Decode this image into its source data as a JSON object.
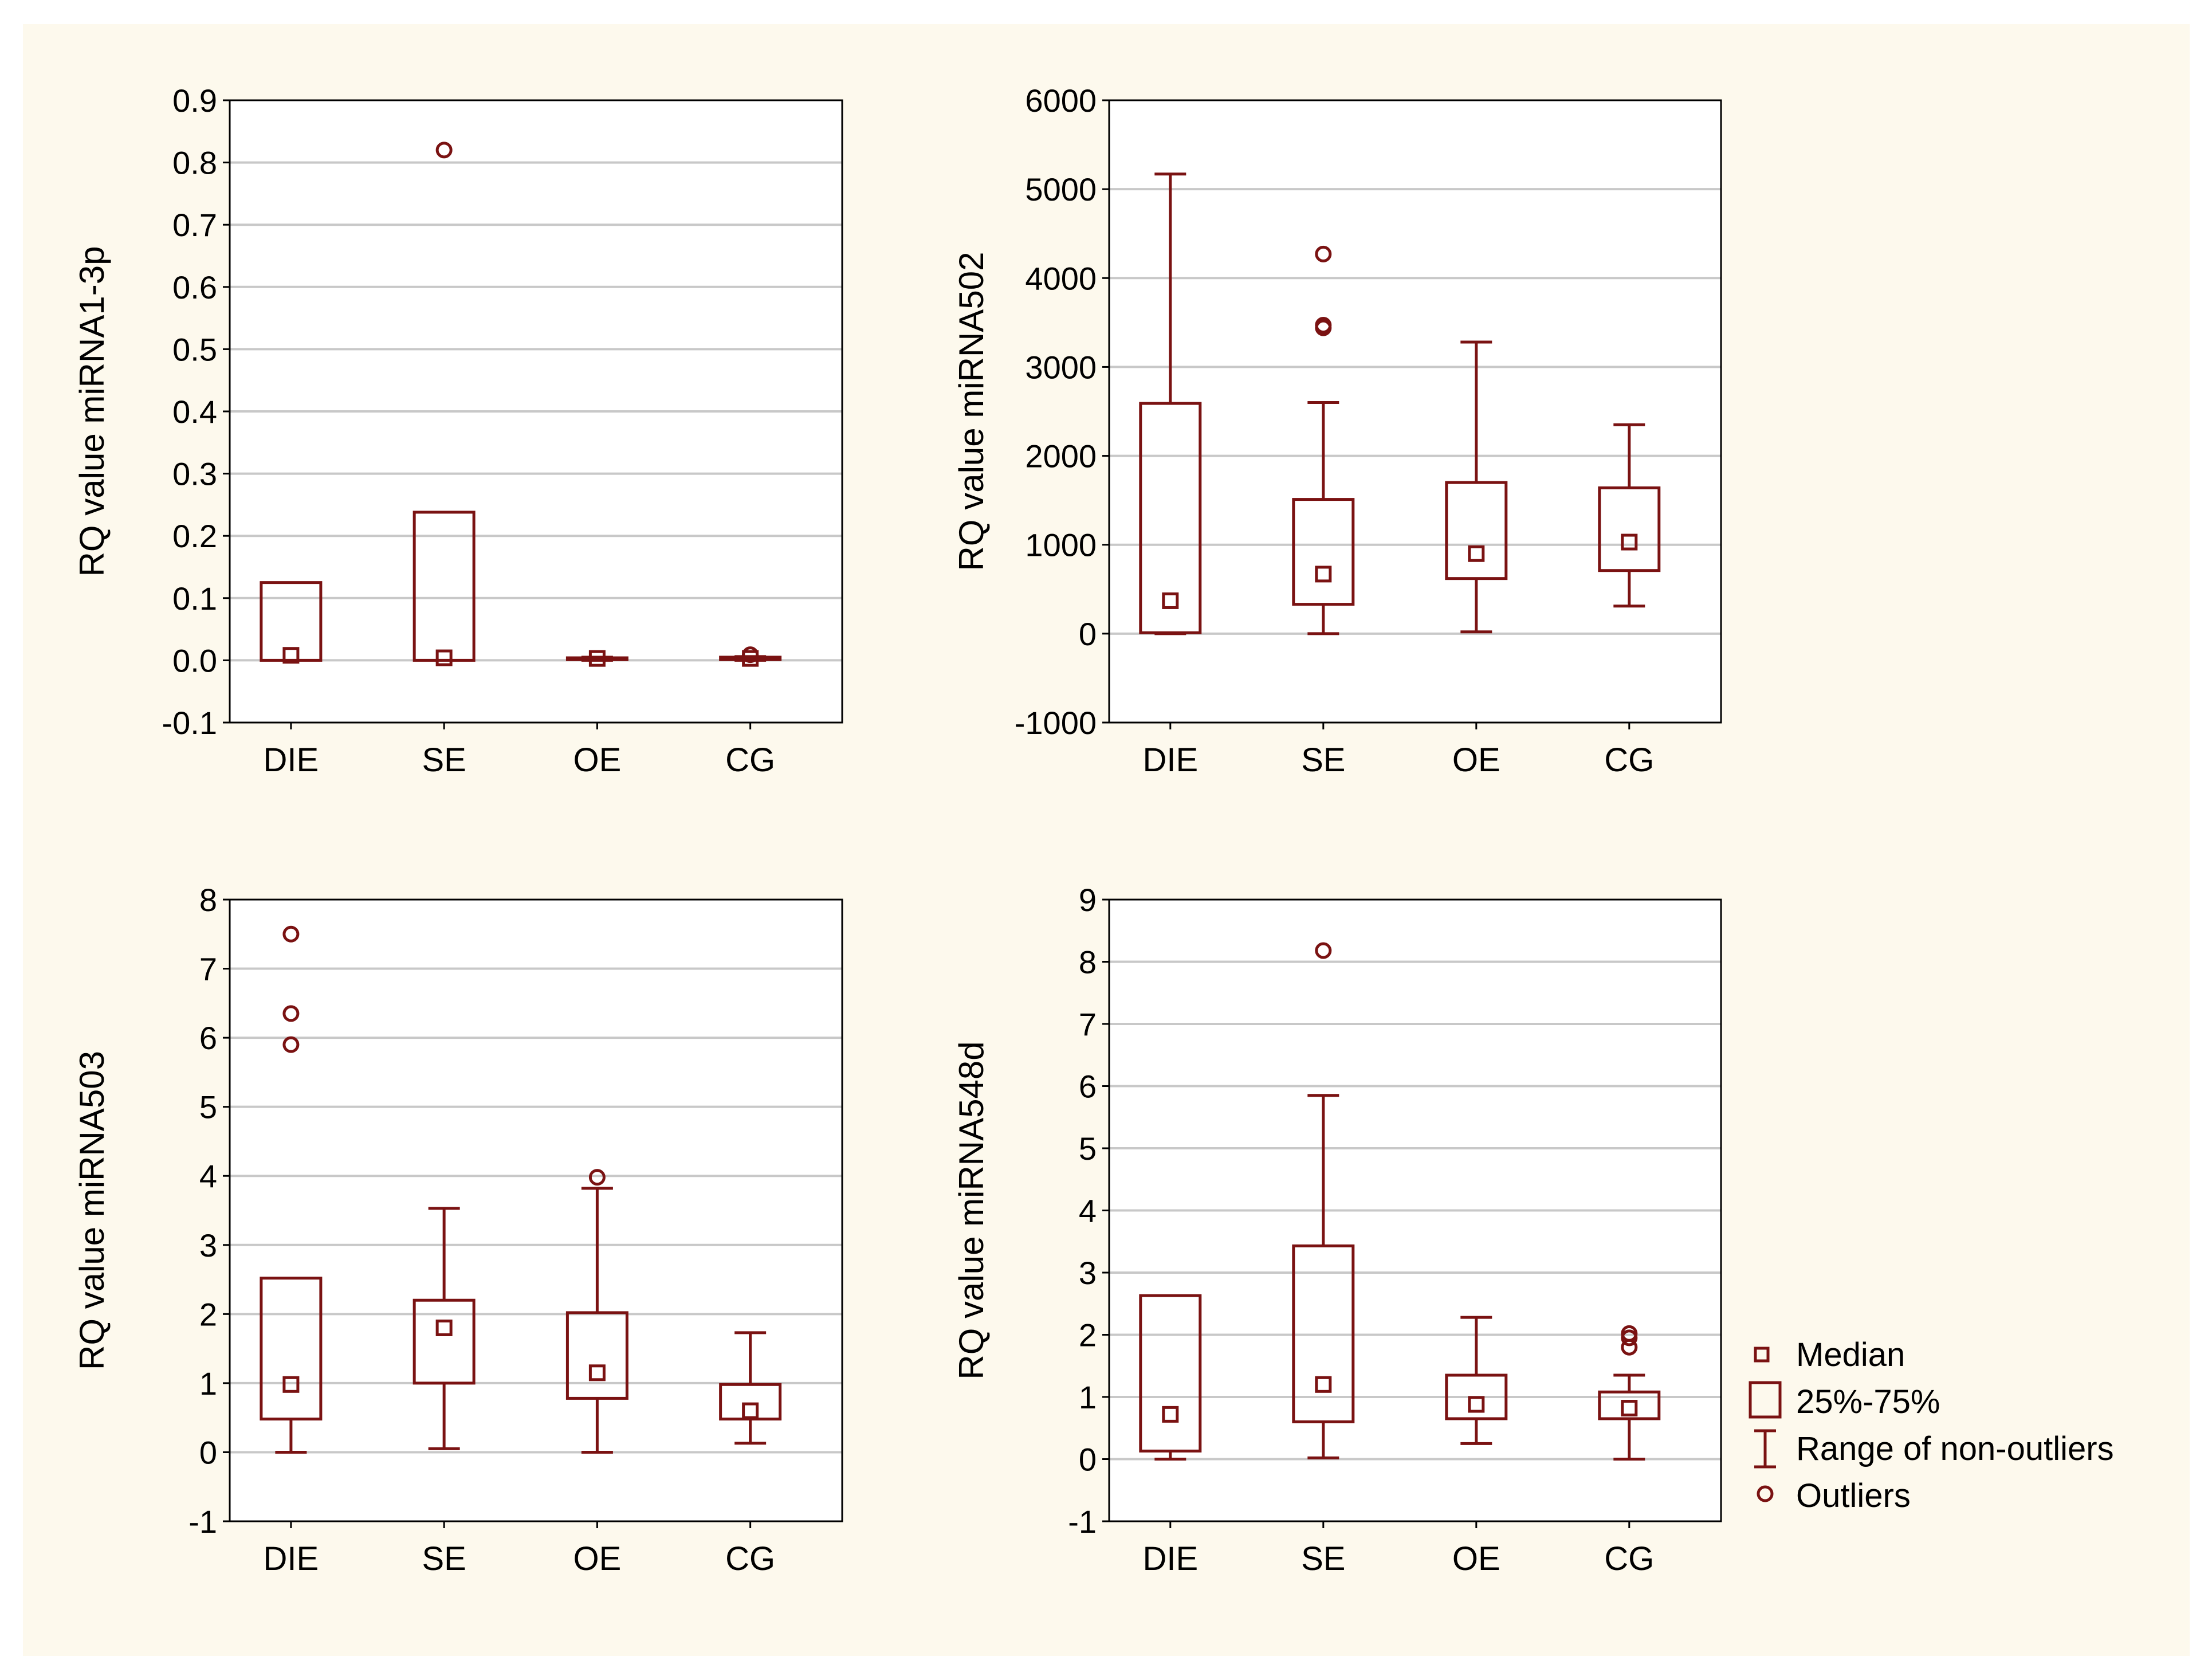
{
  "colors": {
    "background": "#fdf9ed",
    "plot_bg": "#ffffff",
    "series": "#7a1212",
    "grid": "#c8c8c8",
    "axis": "#000000"
  },
  "legend": {
    "placement": "right",
    "items": [
      {
        "icon": "median-square-icon",
        "label": "Median"
      },
      {
        "icon": "iqr-box-icon",
        "label": "25%-75%"
      },
      {
        "icon": "whisker-range-icon",
        "label": "Range of non-outliers"
      },
      {
        "icon": "outlier-circle-icon",
        "label": "Outliers"
      }
    ]
  },
  "chart_data": [
    {
      "type": "boxplot",
      "ylabel": "RQ value miRNA1-3p",
      "categories": [
        "DIE",
        "SE",
        "OE",
        "CG"
      ],
      "ylim": [
        -0.1,
        0.9
      ],
      "yticks": [
        -0.1,
        0.0,
        0.1,
        0.2,
        0.3,
        0.4,
        0.5,
        0.6,
        0.7,
        0.8,
        0.9
      ],
      "ytick_labels": [
        "-0.1",
        "0.0",
        "0.1",
        "0.2",
        "0.3",
        "0.4",
        "0.5",
        "0.6",
        "0.7",
        "0.8",
        "0.9"
      ],
      "grid": true,
      "boxes": [
        {
          "median": 0.008,
          "q1": 0.0,
          "q3": 0.125,
          "min": 0.0,
          "max": 0.125,
          "outliers": []
        },
        {
          "median": 0.004,
          "q1": 0.0,
          "q3": 0.238,
          "min": 0.0,
          "max": 0.238,
          "outliers": [
            0.82
          ]
        },
        {
          "median": 0.003,
          "q1": 0.001,
          "q3": 0.004,
          "min": 0.0,
          "max": 0.005,
          "outliers": []
        },
        {
          "median": 0.003,
          "q1": 0.001,
          "q3": 0.005,
          "min": 0.0,
          "max": 0.006,
          "outliers": [
            0.009
          ]
        }
      ]
    },
    {
      "type": "boxplot",
      "ylabel": "RQ value miRNA502",
      "categories": [
        "DIE",
        "SE",
        "OE",
        "CG"
      ],
      "ylim": [
        -1000,
        6000
      ],
      "yticks": [
        -1000,
        0,
        1000,
        2000,
        3000,
        4000,
        5000,
        6000
      ],
      "ytick_labels": [
        "-1000",
        "0",
        "1000",
        "2000",
        "3000",
        "4000",
        "5000",
        "6000"
      ],
      "grid": true,
      "boxes": [
        {
          "median": 370,
          "q1": 10,
          "q3": 2590,
          "min": 0,
          "max": 5170,
          "outliers": []
        },
        {
          "median": 670,
          "q1": 330,
          "q3": 1510,
          "min": 0,
          "max": 2600,
          "outliers": [
            4270,
            3470,
            3440
          ]
        },
        {
          "median": 900,
          "q1": 620,
          "q3": 1700,
          "min": 20,
          "max": 3280,
          "outliers": []
        },
        {
          "median": 1030,
          "q1": 710,
          "q3": 1640,
          "min": 310,
          "max": 2350,
          "outliers": []
        }
      ]
    },
    {
      "type": "boxplot",
      "ylabel": "RQ value miRNA503",
      "categories": [
        "DIE",
        "SE",
        "OE",
        "CG"
      ],
      "ylim": [
        -1,
        8
      ],
      "yticks": [
        -1,
        0,
        1,
        2,
        3,
        4,
        5,
        6,
        7,
        8
      ],
      "ytick_labels": [
        "-1",
        "0",
        "1",
        "2",
        "3",
        "4",
        "5",
        "6",
        "7",
        "8"
      ],
      "grid": true,
      "boxes": [
        {
          "median": 0.98,
          "q1": 0.48,
          "q3": 2.52,
          "min": 0.0,
          "max": 2.52,
          "outliers": [
            7.5,
            6.35,
            5.9
          ]
        },
        {
          "median": 1.8,
          "q1": 1.0,
          "q3": 2.2,
          "min": 0.05,
          "max": 3.53,
          "outliers": []
        },
        {
          "median": 1.15,
          "q1": 0.78,
          "q3": 2.02,
          "min": 0.0,
          "max": 3.82,
          "outliers": [
            3.98
          ]
        },
        {
          "median": 0.6,
          "q1": 0.48,
          "q3": 0.98,
          "min": 0.13,
          "max": 1.73,
          "outliers": []
        }
      ]
    },
    {
      "type": "boxplot",
      "ylabel": "RQ value miRNA548d",
      "categories": [
        "DIE",
        "SE",
        "OE",
        "CG"
      ],
      "ylim": [
        -1,
        9
      ],
      "yticks": [
        -1,
        0,
        1,
        2,
        3,
        4,
        5,
        6,
        7,
        8,
        9
      ],
      "ytick_labels": [
        "-1",
        "0",
        "1",
        "2",
        "3",
        "4",
        "5",
        "6",
        "7",
        "8",
        "9"
      ],
      "grid": true,
      "boxes": [
        {
          "median": 0.72,
          "q1": 0.13,
          "q3": 2.63,
          "min": 0.0,
          "max": 2.63,
          "outliers": []
        },
        {
          "median": 1.2,
          "q1": 0.6,
          "q3": 3.43,
          "min": 0.02,
          "max": 5.85,
          "outliers": [
            8.18
          ]
        },
        {
          "median": 0.88,
          "q1": 0.65,
          "q3": 1.35,
          "min": 0.25,
          "max": 2.28,
          "outliers": []
        },
        {
          "median": 0.82,
          "q1": 0.65,
          "q3": 1.08,
          "min": 0.0,
          "max": 1.35,
          "outliers": [
            2.02,
            1.95,
            1.8
          ]
        }
      ]
    }
  ]
}
